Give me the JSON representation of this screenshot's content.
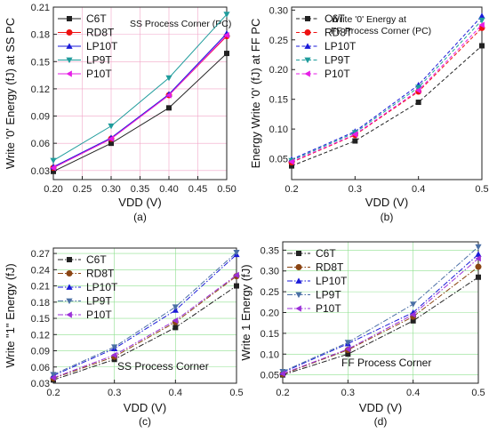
{
  "chart_data": [
    {
      "type": "line",
      "panel_label": "(a)",
      "title": "SS Process Corner (PC)",
      "xlabel": "VDD (V)",
      "ylabel": "Write '0' Energy (fJ) at SS PC",
      "x": [
        0.2,
        0.3,
        0.4,
        0.5
      ],
      "xlim": [
        0.2,
        0.5
      ],
      "ylim": [
        0.02,
        0.21
      ],
      "xticks": [
        0.2,
        0.25,
        0.3,
        0.35,
        0.4,
        0.45,
        0.5
      ],
      "xtick_labels": [
        "0.20",
        "0.25",
        "0.30",
        "0.35",
        "0.40",
        "0.45",
        "0.50"
      ],
      "yticks": [
        0.03,
        0.06,
        0.09,
        0.12,
        0.15,
        0.18,
        0.21
      ],
      "ytick_labels": [
        "0.03",
        "0.06",
        "0.09",
        "0.12",
        "0.15",
        "0.18",
        "0.21"
      ],
      "grid": "on",
      "line_style": "solid",
      "legend_position": "top-left",
      "series": [
        {
          "name": "C6T",
          "values": [
            0.029,
            0.06,
            0.099,
            0.159
          ],
          "color": "#222222",
          "marker": "square"
        },
        {
          "name": "RD8T",
          "values": [
            0.033,
            0.065,
            0.113,
            0.178
          ],
          "color": "#ee1111",
          "marker": "circle"
        },
        {
          "name": "LP10T",
          "values": [
            0.034,
            0.066,
            0.114,
            0.181
          ],
          "color": "#1a1ad8",
          "marker": "triangle-up"
        },
        {
          "name": "LP9T",
          "values": [
            0.041,
            0.079,
            0.132,
            0.202
          ],
          "color": "#1f9c9c",
          "marker": "triangle-down"
        },
        {
          "name": "P10T",
          "values": [
            0.033,
            0.065,
            0.113,
            0.179
          ],
          "color": "#e61ee6",
          "marker": "triangle-left"
        }
      ]
    },
    {
      "type": "line",
      "panel_label": "(b)",
      "title": "Write '0' Energy at FF Process Corner (PC)",
      "xlabel": "VDD (V)",
      "ylabel": "Energy Write '0' (fJ) at FF PC",
      "x": [
        0.2,
        0.3,
        0.4,
        0.5
      ],
      "xlim": [
        0.2,
        0.5
      ],
      "ylim": [
        0.015,
        0.305
      ],
      "xticks": [
        0.2,
        0.3,
        0.4,
        0.5
      ],
      "xtick_labels": [
        "0.2",
        "0.3",
        "0.4",
        "0.5"
      ],
      "yticks": [
        0.05,
        0.1,
        0.15,
        0.2,
        0.25,
        0.3
      ],
      "ytick_labels": [
        "0.05",
        "0.10",
        "0.15",
        "0.20",
        "0.25",
        "0.30"
      ],
      "grid": "off",
      "line_style": "dashed",
      "legend_position": "top-left",
      "series": [
        {
          "name": "C6T",
          "values": [
            0.038,
            0.08,
            0.145,
            0.24
          ],
          "color": "#222222",
          "marker": "square"
        },
        {
          "name": "RD8T",
          "values": [
            0.044,
            0.09,
            0.163,
            0.27
          ],
          "color": "#ee1111",
          "marker": "circle"
        },
        {
          "name": "LP10T",
          "values": [
            0.049,
            0.096,
            0.174,
            0.29
          ],
          "color": "#1a1ad8",
          "marker": "triangle-up"
        },
        {
          "name": "LP9T",
          "values": [
            0.047,
            0.094,
            0.17,
            0.283
          ],
          "color": "#1f9c9c",
          "marker": "triangle-down"
        },
        {
          "name": "P10T",
          "values": [
            0.045,
            0.091,
            0.165,
            0.275
          ],
          "color": "#e61ee6",
          "marker": "triangle-left"
        }
      ]
    },
    {
      "type": "line",
      "panel_label": "(c)",
      "title": "SS Process Corner",
      "xlabel": "VDD (V)",
      "ylabel": "Write \"1\" Energy (fJ)",
      "x": [
        0.2,
        0.3,
        0.4,
        0.5
      ],
      "xlim": [
        0.2,
        0.5
      ],
      "ylim": [
        0.03,
        0.28
      ],
      "xticks": [
        0.2,
        0.3,
        0.4,
        0.5
      ],
      "xtick_labels": [
        "0.2",
        "0.3",
        "0.4",
        "0.5"
      ],
      "yticks": [
        0.03,
        0.06,
        0.09,
        0.12,
        0.15,
        0.18,
        0.21,
        0.24,
        0.27
      ],
      "ytick_labels": [
        "0.03",
        "0.06",
        "0.09",
        "0.12",
        "0.15",
        "0.18",
        "0.21",
        "0.24",
        "0.27"
      ],
      "grid": "on",
      "line_style": "dash-dot",
      "legend_position": "top-left",
      "series": [
        {
          "name": "C6T",
          "values": [
            0.036,
            0.074,
            0.133,
            0.21
          ],
          "color": "#222222",
          "marker": "square"
        },
        {
          "name": "RD8T",
          "values": [
            0.039,
            0.079,
            0.143,
            0.228
          ],
          "color": "#8b4513",
          "marker": "circle"
        },
        {
          "name": "LP10T",
          "values": [
            0.044,
            0.094,
            0.165,
            0.268
          ],
          "color": "#1a1ad8",
          "marker": "triangle-up"
        },
        {
          "name": "LP9T",
          "values": [
            0.046,
            0.097,
            0.171,
            0.272
          ],
          "color": "#4a6fa5",
          "marker": "triangle-down"
        },
        {
          "name": "P10T",
          "values": [
            0.04,
            0.082,
            0.146,
            0.23
          ],
          "color": "#9b30d8",
          "marker": "triangle-left"
        }
      ]
    },
    {
      "type": "line",
      "panel_label": "(d)",
      "title": "FF Process Corner",
      "xlabel": "VDD (V)",
      "ylabel": "Write 1 Energy (fJ)",
      "x": [
        0.2,
        0.3,
        0.4,
        0.5
      ],
      "xlim": [
        0.2,
        0.5
      ],
      "ylim": [
        0.03,
        0.37
      ],
      "xticks": [
        0.2,
        0.3,
        0.4,
        0.5
      ],
      "xtick_labels": [
        "0.2",
        "0.3",
        "0.4",
        "0.5"
      ],
      "yticks": [
        0.05,
        0.1,
        0.15,
        0.2,
        0.25,
        0.3,
        0.35
      ],
      "ytick_labels": [
        "0.05",
        "0.10",
        "0.15",
        "0.20",
        "0.25",
        "0.30",
        "0.35"
      ],
      "grid": "on",
      "line_style": "dash-dot",
      "legend_position": "top-left",
      "series": [
        {
          "name": "C6T",
          "values": [
            0.05,
            0.1,
            0.18,
            0.285
          ],
          "color": "#222222",
          "marker": "square"
        },
        {
          "name": "RD8T",
          "values": [
            0.052,
            0.11,
            0.19,
            0.31
          ],
          "color": "#8b4513",
          "marker": "circle"
        },
        {
          "name": "LP10T",
          "values": [
            0.056,
            0.125,
            0.2,
            0.34
          ],
          "color": "#1a1ad8",
          "marker": "triangle-up"
        },
        {
          "name": "LP9T",
          "values": [
            0.058,
            0.128,
            0.22,
            0.358
          ],
          "color": "#4a6fa5",
          "marker": "triangle-down"
        },
        {
          "name": "P10T",
          "values": [
            0.053,
            0.112,
            0.195,
            0.33
          ],
          "color": "#9b30d8",
          "marker": "triangle-left"
        }
      ]
    }
  ]
}
